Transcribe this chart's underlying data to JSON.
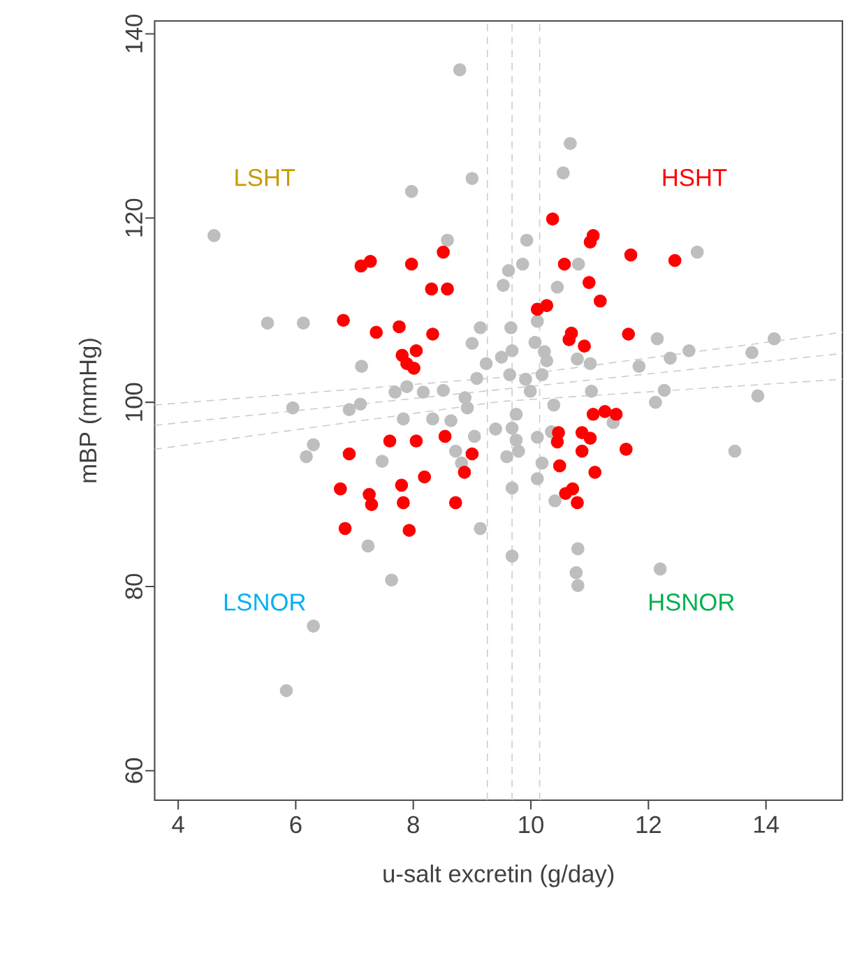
{
  "chart_data": {
    "type": "scatter",
    "xlabel": "u-salt excretin (g/day)",
    "ylabel": "mBP (mmHg)",
    "xlim": [
      3.6,
      15.3
    ],
    "ylim": [
      56.8,
      141.4
    ],
    "xticks": [
      4,
      6,
      8,
      10,
      12,
      14
    ],
    "yticks": [
      60,
      80,
      100,
      120,
      140
    ],
    "annotations": [
      "LSHT",
      "HSHT",
      "LSNOR",
      "HSNOR"
    ],
    "ref_lines": [
      {
        "axis": "x",
        "value": 9.26,
        "color": "#cccccc",
        "line_style": "dashed"
      },
      {
        "axis": "x",
        "value": 9.68,
        "color": "#cccccc",
        "line_style": "dashed"
      },
      {
        "axis": "x",
        "value": 10.15,
        "color": "#cccccc",
        "line_style": "dashed"
      }
    ],
    "series": [
      {
        "marker": "circle",
        "color": "#bebebe",
        "x": [
          4.61,
          5.52,
          6.13,
          7.12,
          5.95,
          6.91,
          7.1,
          8.79,
          10.67,
          9.0,
          10.55,
          7.97,
          8.58,
          9.93,
          10.81,
          9.86,
          9.62,
          9.53,
          10.45,
          10.11,
          9.14,
          9.66,
          9.0,
          9.68,
          9.5,
          9.24,
          9.08,
          10.07,
          10.23,
          10.27,
          10.19,
          10.79,
          11.01,
          9.64,
          9.91,
          9.99,
          7.69,
          7.89,
          8.17,
          8.51,
          8.88,
          8.92,
          10.39,
          11.03,
          7.83,
          8.33,
          8.64,
          9.75,
          9.04,
          9.4,
          9.68,
          9.75,
          9.59,
          9.79,
          10.11,
          10.35,
          8.72,
          8.82,
          7.47,
          9.14,
          9.68,
          10.11,
          10.19,
          10.41,
          10.8,
          10.77,
          10.8,
          9.68,
          7.63,
          6.3,
          6.18,
          7.23,
          6.3,
          5.84,
          12.83,
          12.15,
          12.69,
          12.37,
          11.84,
          14.14,
          13.76,
          12.27,
          12.12,
          13.86,
          11.4,
          13.47,
          12.2
        ],
        "values": [
          118.1,
          108.6,
          108.6,
          103.9,
          99.4,
          99.2,
          99.8,
          136.1,
          128.1,
          124.3,
          124.9,
          122.9,
          117.6,
          117.6,
          115.0,
          115.0,
          114.3,
          112.7,
          112.5,
          108.8,
          108.1,
          108.1,
          106.4,
          105.6,
          104.9,
          104.2,
          102.6,
          106.5,
          105.5,
          104.5,
          103.0,
          104.7,
          104.2,
          103.0,
          102.5,
          101.2,
          101.1,
          101.7,
          101.1,
          101.3,
          100.5,
          99.4,
          99.7,
          101.2,
          98.2,
          98.2,
          98.0,
          98.7,
          96.3,
          97.1,
          97.2,
          95.9,
          94.1,
          94.7,
          96.2,
          96.8,
          94.7,
          93.4,
          93.6,
          86.3,
          90.7,
          91.7,
          93.4,
          89.3,
          84.1,
          81.5,
          80.1,
          83.3,
          80.7,
          95.4,
          94.1,
          84.4,
          75.7,
          68.7,
          116.3,
          106.9,
          105.6,
          104.8,
          103.9,
          106.9,
          105.4,
          101.3,
          100.0,
          100.7,
          97.8,
          94.7,
          81.9
        ]
      },
      {
        "marker": "circle",
        "color": "#ff0000",
        "x": [
          7.11,
          7.27,
          6.81,
          7.37,
          10.37,
          11.06,
          11.01,
          8.51,
          7.97,
          10.57,
          10.99,
          8.31,
          8.58,
          11.18,
          10.11,
          10.27,
          7.76,
          8.33,
          10.69,
          10.65,
          10.91,
          7.81,
          8.05,
          8.01,
          7.89,
          11.06,
          11.26,
          7.6,
          8.05,
          8.54,
          10.47,
          10.45,
          10.87,
          11.01,
          10.87,
          11.09,
          9.0,
          8.87,
          8.19,
          7.8,
          7.83,
          8.72,
          7.93,
          10.49,
          10.59,
          10.71,
          10.79,
          6.91,
          6.76,
          7.25,
          7.29,
          6.84,
          11.7,
          12.45,
          11.66,
          11.45,
          11.62
        ],
        "values": [
          114.8,
          115.3,
          108.9,
          107.6,
          119.9,
          118.1,
          117.4,
          116.3,
          115.0,
          115.0,
          113.0,
          112.3,
          112.3,
          111.0,
          110.1,
          110.5,
          108.2,
          107.4,
          107.5,
          106.8,
          106.1,
          105.1,
          105.6,
          103.7,
          104.2,
          98.7,
          99.0,
          95.8,
          95.8,
          96.3,
          96.7,
          95.7,
          96.7,
          96.1,
          94.7,
          92.4,
          94.4,
          92.4,
          91.9,
          91.0,
          89.1,
          89.1,
          86.1,
          93.1,
          90.1,
          90.6,
          89.1,
          94.4,
          90.6,
          90.0,
          88.9,
          86.3,
          116.0,
          115.4,
          107.4,
          98.7,
          94.9
        ]
      },
      {
        "type": "line",
        "marker": "none",
        "color": "#cccccc",
        "line_style": "dashed",
        "x": [
          3.6,
          9.5,
          15.3
        ],
        "values": [
          99.7,
          102.7,
          107.6
        ]
      },
      {
        "type": "line",
        "marker": "none",
        "color": "#cccccc",
        "line_style": "dashed",
        "x": [
          3.6,
          9.5,
          15.3
        ],
        "values": [
          97.5,
          101.4,
          105.3
        ]
      },
      {
        "type": "line",
        "marker": "none",
        "color": "#cccccc",
        "line_style": "dashed",
        "x": [
          3.6,
          9.5,
          15.3
        ],
        "values": [
          94.9,
          100.1,
          102.5
        ]
      }
    ]
  }
}
